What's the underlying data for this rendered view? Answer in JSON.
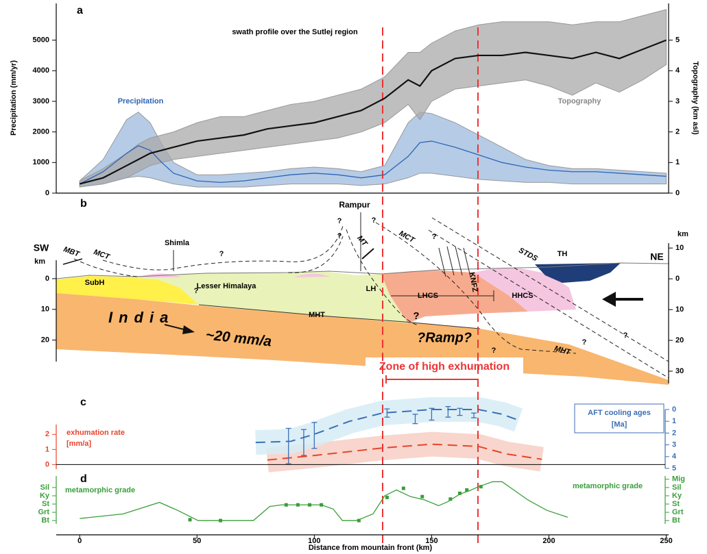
{
  "chart_data": [
    {
      "type": "line",
      "panel_label": "a",
      "title": "swath profile over the Sutlej region",
      "y_label": "Precipitation (mm/yr)",
      "y2_label": "Topography (km asl)",
      "ylim": [
        0,
        6200
      ],
      "yticks": [
        0,
        1000,
        2000,
        3000,
        4000,
        5000
      ],
      "y2lim": [
        0,
        6.2
      ],
      "y2ticks": [
        0,
        1,
        2,
        3,
        4,
        5
      ],
      "x": [
        0,
        10,
        20,
        25,
        30,
        35,
        40,
        50,
        60,
        70,
        80,
        90,
        100,
        110,
        120,
        130,
        140,
        145,
        150,
        160,
        170,
        180,
        190,
        200,
        210,
        220,
        230,
        240,
        250
      ],
      "series": [
        {
          "name": "Precipitation",
          "color": "#2d64b4",
          "band_color": "#9db9dd",
          "values": [
            300,
            700,
            1300,
            1550,
            1400,
            1000,
            650,
            400,
            350,
            400,
            500,
            600,
            650,
            600,
            500,
            600,
            1200,
            1650,
            1700,
            1500,
            1250,
            1000,
            850,
            750,
            700,
            700,
            650,
            600,
            550
          ],
          "range_high": [
            400,
            1100,
            2400,
            2650,
            2300,
            1600,
            1000,
            600,
            600,
            650,
            700,
            800,
            850,
            800,
            700,
            900,
            2300,
            2650,
            2600,
            2300,
            1900,
            1500,
            1100,
            900,
            800,
            800,
            750,
            700,
            650
          ],
          "range_low": [
            200,
            300,
            500,
            550,
            500,
            400,
            300,
            200,
            200,
            200,
            250,
            300,
            300,
            300,
            250,
            300,
            500,
            650,
            650,
            550,
            450,
            400,
            350,
            350,
            300,
            300,
            300,
            300,
            300
          ]
        },
        {
          "name": "Topography",
          "color": "#111111",
          "band_color": "#a9a9a9",
          "axis": "y2",
          "values": [
            0.3,
            0.5,
            0.9,
            1.1,
            1.3,
            1.4,
            1.5,
            1.7,
            1.8,
            1.9,
            2.1,
            2.2,
            2.3,
            2.5,
            2.7,
            3.1,
            3.7,
            3.5,
            4.0,
            4.4,
            4.5,
            4.5,
            4.6,
            4.5,
            4.4,
            4.6,
            4.4,
            4.7,
            5.0
          ],
          "range_high": [
            0.4,
            0.8,
            1.3,
            1.6,
            1.8,
            1.9,
            2.0,
            2.3,
            2.5,
            2.5,
            2.7,
            2.9,
            3.0,
            3.2,
            3.4,
            3.8,
            4.6,
            4.6,
            4.9,
            5.3,
            5.5,
            5.6,
            5.6,
            5.6,
            5.5,
            5.6,
            5.6,
            5.8,
            6.0
          ],
          "range_low": [
            0.2,
            0.3,
            0.5,
            0.7,
            0.9,
            1.0,
            1.1,
            1.2,
            1.3,
            1.4,
            1.5,
            1.6,
            1.7,
            1.8,
            2.0,
            2.3,
            2.9,
            2.4,
            3.0,
            3.4,
            3.5,
            3.6,
            3.7,
            3.5,
            3.2,
            3.6,
            3.3,
            3.7,
            4.2
          ]
        }
      ]
    },
    {
      "type": "section",
      "panel_label": "b",
      "y_label": "km",
      "y2_label": "km",
      "ylim": [
        -6,
        27
      ],
      "y_inverted": true,
      "yticks": [
        0,
        10,
        20
      ],
      "y2lim": [
        -11.6,
        34
      ],
      "y2_inverted": true,
      "y2ticks": [
        {
          "value": -10,
          "label": "10"
        },
        0,
        10,
        20,
        30
      ],
      "labels": [
        "SW",
        "NE",
        "MBT",
        "MCT",
        "Shimla",
        "Rampur",
        "MT",
        "MCT",
        "STDS",
        "TH",
        "SubH",
        "Lesser Himalaya",
        "LH",
        "LHCS",
        "HHCS",
        "KNFZ",
        "MHT",
        "MHT",
        "?Ramp?",
        "India",
        "~20 mm/a",
        "Zone of high exhumation"
      ],
      "question_marks": [
        "?",
        "?",
        "?",
        "?",
        "?",
        "?",
        "?",
        "?",
        "?",
        "?"
      ]
    },
    {
      "type": "line",
      "panel_label": "c",
      "y_label": "[mm/a]",
      "y2_label": "[Ma]",
      "ylim": [
        -0.3,
        2.65
      ],
      "yticks": [
        0,
        1,
        2
      ],
      "y2lim": [
        0,
        5
      ],
      "y2_inverted": true,
      "y2ticks": [
        0,
        1,
        2,
        3,
        4,
        5
      ],
      "series": [
        {
          "name": "exhumation rate",
          "color": "#e8432c",
          "band_color": "#f7cfc4",
          "dashed": true,
          "x": [
            80,
            100,
            129,
            150,
            170,
            182,
            197
          ],
          "values": [
            0.3,
            0.6,
            1.1,
            1.35,
            1.2,
            0.7,
            0.35
          ]
        },
        {
          "name": "AFT cooling ages",
          "color": "#3c6eb4",
          "band_color": "#d6ecf6",
          "dashed": true,
          "axis": "y2",
          "x": [
            75,
            90,
            100,
            115,
            129,
            150,
            170,
            180,
            187
          ],
          "values": [
            2.8,
            2.7,
            2.1,
            1.0,
            0.3,
            0.0,
            0.0,
            0.4,
            0.9
          ],
          "points": {
            "x": [
              89,
              95.5,
              100,
              131,
              143,
              150,
              157,
              162,
              168
            ],
            "values": [
              3.1,
              2.8,
              2.2,
              0.3,
              0.8,
              0.4,
              0.2,
              0.2,
              0.5
            ],
            "errors": [
              1.5,
              1.1,
              1.1,
              0.35,
              0.4,
              0.5,
              0.45,
              0.3,
              0.2
            ]
          }
        }
      ]
    },
    {
      "type": "line",
      "panel_label": "d",
      "x_label": "Distance from mountain front (km)",
      "xlim": [
        -10,
        251
      ],
      "xticks": [
        0,
        50,
        100,
        150,
        200,
        250
      ],
      "ylim": [
        -0.4,
        5.4
      ],
      "yticks": [
        {
          "value": 0,
          "label": "Bt"
        },
        {
          "value": 1,
          "label": "Grt"
        },
        {
          "value": 2,
          "label": "St"
        },
        {
          "value": 3,
          "label": "Ky"
        },
        {
          "value": 4,
          "label": "Sil"
        }
      ],
      "y2lim": [
        -0.4,
        5.4
      ],
      "y2ticks": [
        {
          "value": 0,
          "label": "Bt"
        },
        {
          "value": 1,
          "label": "Grt"
        },
        {
          "value": 2,
          "label": "St"
        },
        {
          "value": 3,
          "label": "Ky"
        },
        {
          "value": 4,
          "label": "Sil"
        },
        {
          "value": 5,
          "label": "Mig"
        }
      ],
      "series": [
        {
          "name": "metamorphic grade",
          "color": "#3a9e3a",
          "x": [
            0,
            18.5,
            34,
            42,
            50.5,
            74,
            81,
            86,
            103,
            108,
            112,
            118,
            125,
            130,
            135,
            141,
            147,
            153,
            157,
            162,
            166,
            170,
            176,
            180,
            191,
            199,
            208
          ],
          "values": [
            0.25,
            0.8,
            2.2,
            1.2,
            0,
            0,
            1.7,
            1.9,
            1.9,
            1.4,
            0,
            0,
            0.8,
            3,
            3.7,
            2.9,
            2.5,
            1.8,
            2.3,
            3.2,
            3.6,
            4.1,
            4.7,
            4.7,
            2.5,
            1.25,
            0.4
          ],
          "samples": {
            "x": [
              47,
              60,
              88,
              93,
              98,
              103,
              119,
              131,
              138,
              146,
              158,
              162,
              165,
              171
            ],
            "values": [
              0.1,
              0,
              1.9,
              1.9,
              1.9,
              1.9,
              0,
              2.8,
              3.9,
              2.9,
              2.6,
              3.3,
              3.7,
              4.1
            ]
          }
        }
      ]
    }
  ]
}
